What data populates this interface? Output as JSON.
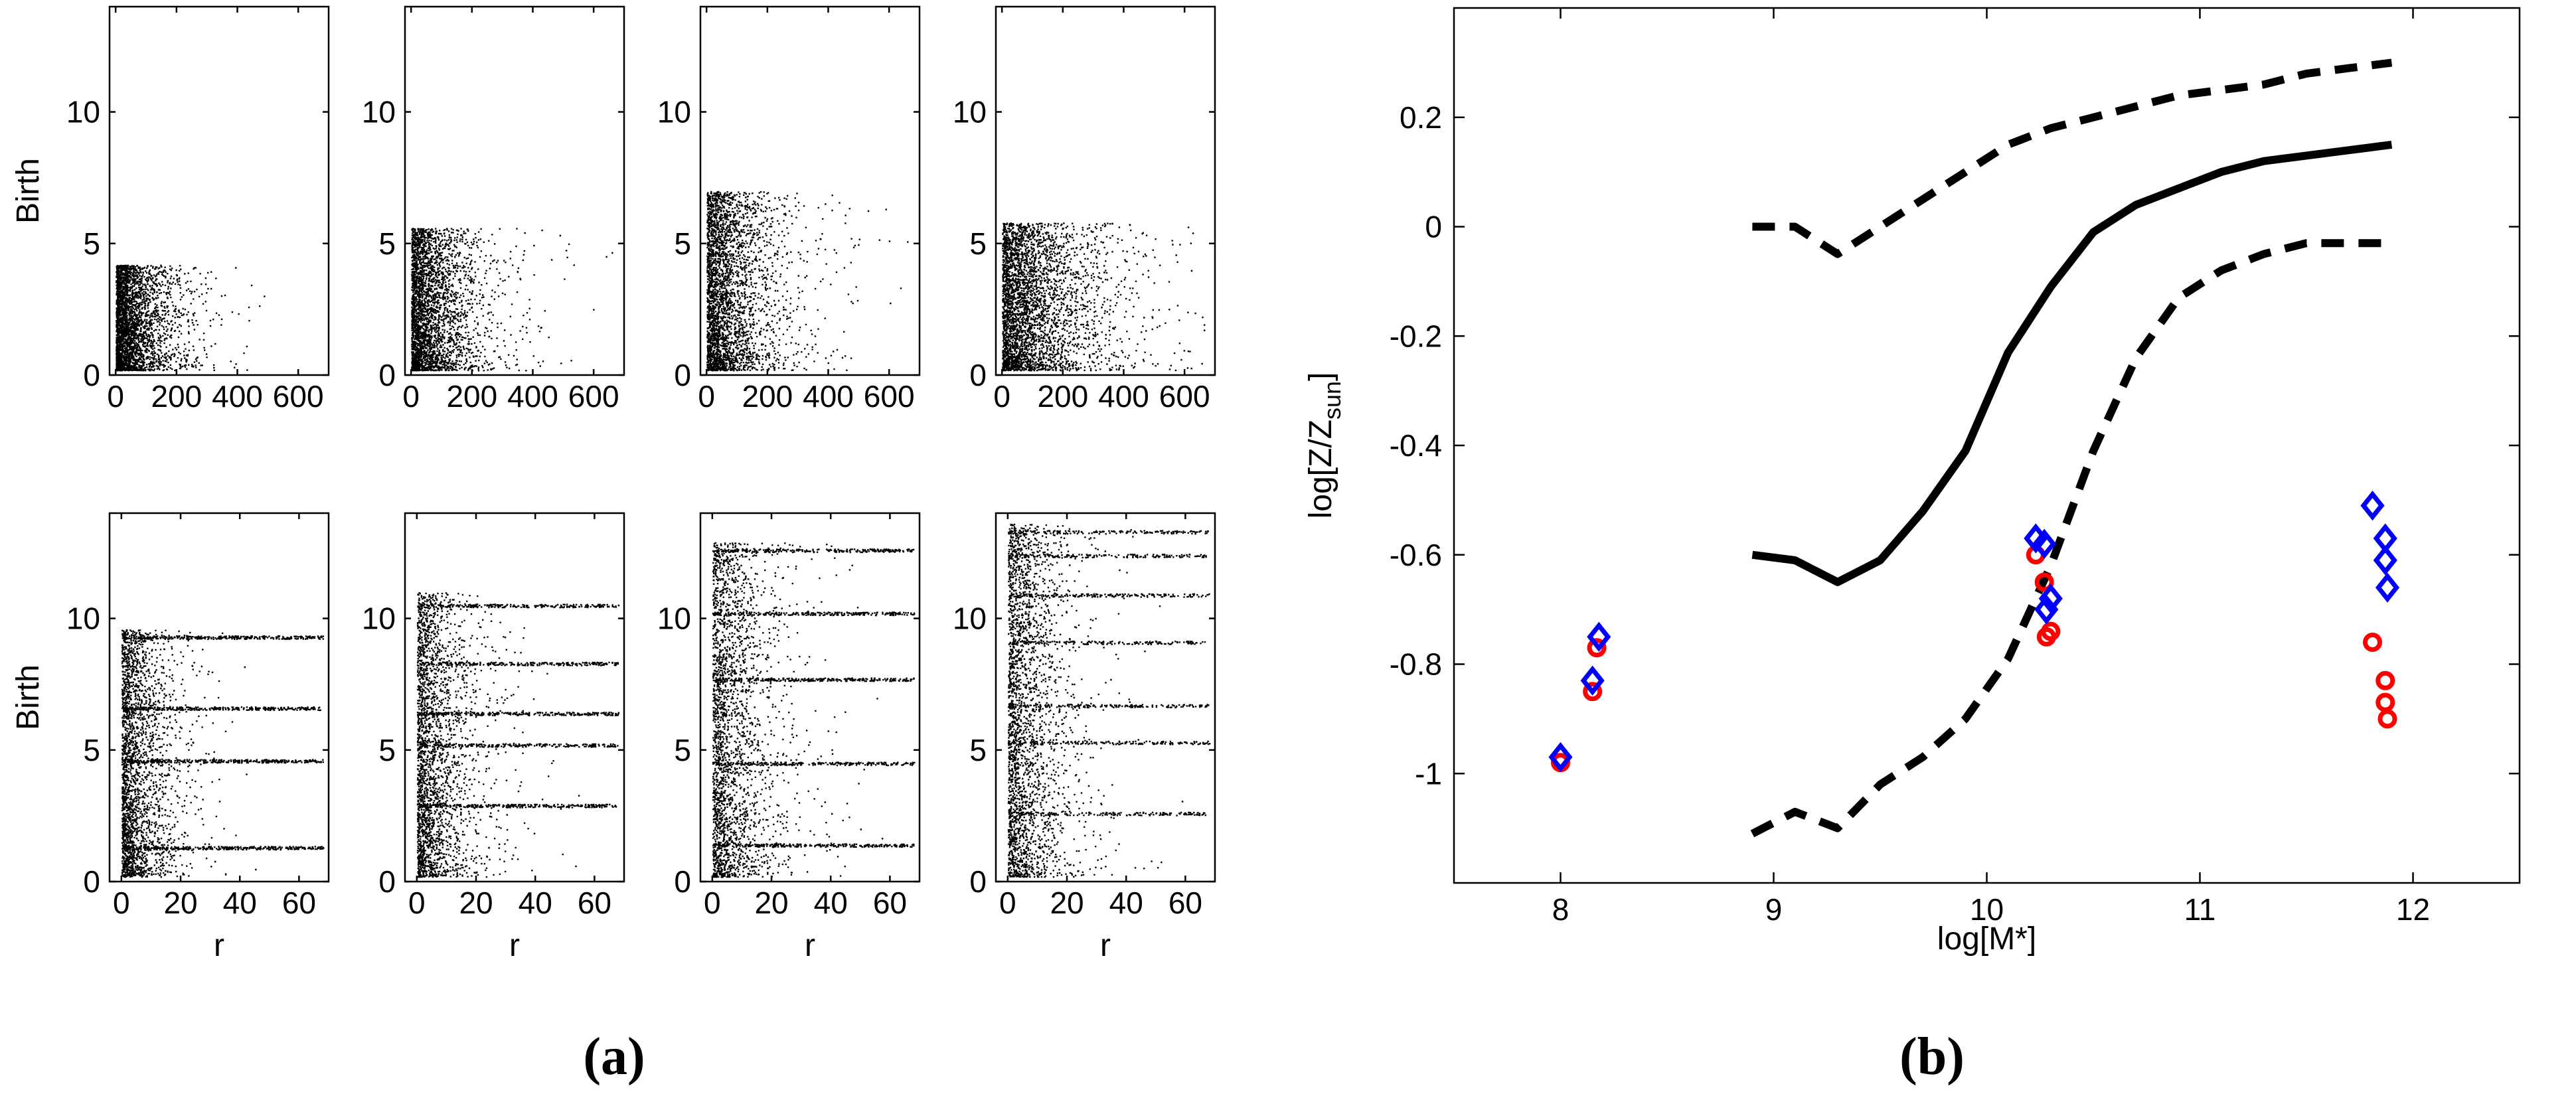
{
  "panel_labels": {
    "a": "(a)",
    "b": "(b)"
  },
  "chart_data": [
    {
      "type": "scatter",
      "panel": "a",
      "subplots": [
        {
          "row": 0,
          "col": 0,
          "xlabel": "",
          "ylabel": "Birth",
          "xlim": [
            -20,
            700
          ],
          "ylim": [
            0,
            14
          ],
          "xticks": [
            0,
            200,
            400,
            600
          ],
          "xtick_labels": [
            "0",
            "200",
            "400",
            "600"
          ],
          "yticks": [
            0,
            5,
            10
          ],
          "ytick_labels": [
            "0",
            "5",
            "10"
          ],
          "points": {
            "y_lo": 0.2,
            "y_hi": 4.2,
            "x_scale": 90,
            "x_max": 680,
            "bands": [],
            "n": 3200,
            "color": "#000000",
            "seed": 11
          }
        },
        {
          "row": 0,
          "col": 1,
          "xlabel": "",
          "ylabel": "",
          "xlim": [
            -20,
            700
          ],
          "ylim": [
            0,
            14
          ],
          "xticks": [
            0,
            200,
            400,
            600
          ],
          "xtick_labels": [
            "0",
            "200",
            "400",
            "600"
          ],
          "yticks": [
            0,
            5,
            10
          ],
          "ytick_labels": [
            "0",
            "5",
            "10"
          ],
          "points": {
            "y_lo": 0.2,
            "y_hi": 5.6,
            "x_scale": 110,
            "x_max": 680,
            "bands": [],
            "n": 3200,
            "color": "#000000",
            "seed": 23
          }
        },
        {
          "row": 0,
          "col": 2,
          "xlabel": "",
          "ylabel": "",
          "xlim": [
            -20,
            700
          ],
          "ylim": [
            0,
            14
          ],
          "xticks": [
            0,
            200,
            400,
            600
          ],
          "xtick_labels": [
            "0",
            "200",
            "400",
            "600"
          ],
          "yticks": [
            0,
            5,
            10
          ],
          "ytick_labels": [
            "0",
            "5",
            "10"
          ],
          "points": {
            "y_lo": 0.2,
            "y_hi": 7.0,
            "x_scale": 120,
            "x_max": 690,
            "bands": [],
            "n": 3200,
            "color": "#000000",
            "seed": 37
          }
        },
        {
          "row": 0,
          "col": 3,
          "xlabel": "",
          "ylabel": "",
          "xlim": [
            -20,
            700
          ],
          "ylim": [
            0,
            14
          ],
          "xticks": [
            0,
            200,
            400,
            600
          ],
          "xtick_labels": [
            "0",
            "200",
            "400",
            "600"
          ],
          "yticks": [
            0,
            5,
            10
          ],
          "ytick_labels": [
            "0",
            "5",
            "10"
          ],
          "points": {
            "y_lo": 0.2,
            "y_hi": 5.8,
            "x_scale": 160,
            "x_max": 690,
            "bands": [],
            "n": 3600,
            "color": "#000000",
            "seed": 41
          }
        },
        {
          "row": 1,
          "col": 0,
          "xlabel": "r",
          "ylabel": "Birth",
          "xlim": [
            -4,
            70
          ],
          "ylim": [
            0,
            14
          ],
          "xticks": [
            0,
            20,
            40,
            60
          ],
          "xtick_labels": [
            "0",
            "20",
            "40",
            "60"
          ],
          "yticks": [
            0,
            5,
            10
          ],
          "ytick_labels": [
            "0",
            "5",
            "10"
          ],
          "points": {
            "y_lo": 0.2,
            "y_hi": 9.6,
            "x_scale": 9,
            "x_max": 68,
            "bands": [
              6.6,
              4.6,
              1.3,
              9.3
            ],
            "n": 3800,
            "color": "#000000",
            "seed": 53
          }
        },
        {
          "row": 1,
          "col": 1,
          "xlabel": "r",
          "ylabel": "",
          "xlim": [
            -4,
            70
          ],
          "ylim": [
            0,
            14
          ],
          "xticks": [
            0,
            20,
            40,
            60
          ],
          "xtick_labels": [
            "0",
            "20",
            "40",
            "60"
          ],
          "yticks": [
            0,
            5,
            10
          ],
          "ytick_labels": [
            "0",
            "5",
            "10"
          ],
          "points": {
            "y_lo": 0.2,
            "y_hi": 11.0,
            "x_scale": 10,
            "x_max": 68,
            "bands": [
              10.5,
              8.3,
              6.4,
              5.2,
              2.9
            ],
            "n": 3800,
            "color": "#000000",
            "seed": 67
          }
        },
        {
          "row": 1,
          "col": 2,
          "xlabel": "r",
          "ylabel": "",
          "xlim": [
            -4,
            70
          ],
          "ylim": [
            0,
            14
          ],
          "xticks": [
            0,
            20,
            40,
            60
          ],
          "xtick_labels": [
            "0",
            "20",
            "40",
            "60"
          ],
          "yticks": [
            0,
            5,
            10
          ],
          "ytick_labels": [
            "0",
            "5",
            "10"
          ],
          "points": {
            "y_lo": 0.2,
            "y_hi": 12.9,
            "x_scale": 11,
            "x_max": 68,
            "bands": [
              12.6,
              10.2,
              7.7,
              4.5,
              1.4
            ],
            "n": 3800,
            "color": "#000000",
            "seed": 71
          }
        },
        {
          "row": 1,
          "col": 3,
          "xlabel": "r",
          "ylabel": "",
          "xlim": [
            -4,
            70
          ],
          "ylim": [
            0,
            14
          ],
          "xticks": [
            0,
            20,
            40,
            60
          ],
          "xtick_labels": [
            "0",
            "20",
            "40",
            "60"
          ],
          "yticks": [
            0,
            5,
            10
          ],
          "ytick_labels": [
            "0",
            "5",
            "10"
          ],
          "points": {
            "y_lo": 0.2,
            "y_hi": 13.6,
            "x_scale": 11,
            "x_max": 68,
            "bands": [
              13.3,
              12.4,
              10.9,
              9.1,
              6.7,
              5.3,
              2.6
            ],
            "n": 3800,
            "color": "#000000",
            "seed": 83
          }
        }
      ]
    },
    {
      "type": "line",
      "panel": "b",
      "xlabel": "log[M*]",
      "ylabel": "log[Z/Z",
      "ylabel_sub": "sun",
      "ylabel_close": "]",
      "xlim": [
        7.5,
        12.5
      ],
      "ylim": [
        -1.2,
        0.4
      ],
      "xticks": [
        8,
        9,
        10,
        11,
        12
      ],
      "xtick_labels": [
        "8",
        "9",
        "10",
        "11",
        "12"
      ],
      "yticks": [
        0.2,
        0,
        -0.2,
        -0.4,
        -0.6,
        -0.8,
        -1
      ],
      "ytick_labels": [
        "0.2",
        "0",
        "-0.2",
        "-0.4",
        "-0.6",
        "-0.8",
        "-1"
      ],
      "series": [
        {
          "style": "solid",
          "color": "#000000",
          "x": [
            8.9,
            9.1,
            9.3,
            9.5,
            9.7,
            9.9,
            10.1,
            10.3,
            10.5,
            10.7,
            10.9,
            11.1,
            11.3,
            11.5,
            11.7,
            11.9
          ],
          "y": [
            -0.6,
            -0.61,
            -0.65,
            -0.61,
            -0.52,
            -0.41,
            -0.23,
            -0.11,
            -0.01,
            0.04,
            0.07,
            0.1,
            0.12,
            0.13,
            0.14,
            0.15
          ]
        },
        {
          "style": "dashed",
          "color": "#000000",
          "x": [
            8.9,
            9.1,
            9.3,
            9.5,
            9.7,
            9.9,
            10.1,
            10.3,
            10.5,
            10.7,
            10.9,
            11.1,
            11.3,
            11.5,
            11.7,
            11.9
          ],
          "y": [
            0.0,
            0.0,
            -0.05,
            0.0,
            0.05,
            0.1,
            0.15,
            0.18,
            0.2,
            0.22,
            0.24,
            0.25,
            0.26,
            0.28,
            0.29,
            0.3
          ]
        },
        {
          "style": "dashed",
          "color": "#000000",
          "x": [
            8.9,
            9.1,
            9.3,
            9.5,
            9.7,
            9.9,
            10.1,
            10.3,
            10.5,
            10.7,
            10.9,
            11.1,
            11.3,
            11.5,
            11.7,
            11.9
          ],
          "y": [
            -1.11,
            -1.07,
            -1.1,
            -1.02,
            -0.97,
            -0.9,
            -0.79,
            -0.62,
            -0.41,
            -0.24,
            -0.13,
            -0.08,
            -0.05,
            -0.03,
            -0.03,
            -0.03
          ]
        }
      ],
      "markers": [
        {
          "shape": "circle",
          "color": "#ff0000",
          "points": [
            [
              8.0,
              -0.98
            ],
            [
              8.15,
              -0.85
            ],
            [
              8.17,
              -0.77
            ],
            [
              10.23,
              -0.6
            ],
            [
              10.27,
              -0.65
            ],
            [
              10.3,
              -0.74
            ],
            [
              10.28,
              -0.75
            ],
            [
              11.81,
              -0.76
            ],
            [
              11.87,
              -0.83
            ],
            [
              11.87,
              -0.87
            ],
            [
              11.88,
              -0.9
            ]
          ]
        },
        {
          "shape": "diamond",
          "color": "#0000ff",
          "points": [
            [
              8.0,
              -0.97
            ],
            [
              8.15,
              -0.83
            ],
            [
              8.18,
              -0.75
            ],
            [
              10.23,
              -0.57
            ],
            [
              10.27,
              -0.58
            ],
            [
              10.3,
              -0.68
            ],
            [
              10.28,
              -0.7
            ],
            [
              11.81,
              -0.51
            ],
            [
              11.87,
              -0.57
            ],
            [
              11.87,
              -0.61
            ],
            [
              11.88,
              -0.66
            ]
          ]
        }
      ]
    }
  ]
}
